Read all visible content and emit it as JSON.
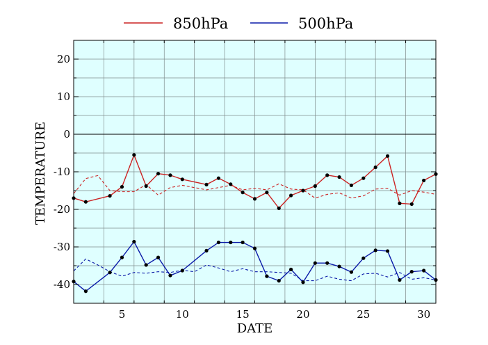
{
  "chart_data": {
    "type": "line",
    "title": "",
    "xlabel": "DATE",
    "ylabel": "TEMPERATURE",
    "xlim": [
      1,
      31
    ],
    "ylim": [
      -45,
      25
    ],
    "xticks": [
      5,
      10,
      15,
      20,
      25,
      30
    ],
    "yticks": [
      20,
      10,
      0,
      -10,
      -20,
      -30,
      -40
    ],
    "x_minor_step": 2.5,
    "y_minor_step": 5,
    "grid": true,
    "zero_line": true,
    "legend": {
      "placement": "top-center",
      "entries": [
        "850hPa",
        "500hPa"
      ]
    },
    "colors": {
      "background": "#dfffff",
      "grid": "#7f8c8c",
      "850hPa": "#cc2222",
      "500hPa": "#0a1aa8",
      "marker": "#000000"
    },
    "series": [
      {
        "name": "850hPa",
        "style": "solid-markers",
        "color": "#cc2222",
        "x": [
          1,
          2,
          4,
          5,
          6,
          7,
          8,
          9,
          10,
          12,
          13,
          14,
          15,
          16,
          17,
          18,
          19,
          20,
          21,
          22,
          23,
          24,
          25,
          26,
          27,
          28,
          29,
          30,
          31
        ],
        "values": [
          -17.0,
          -18.0,
          -16.4,
          -14.0,
          -5.5,
          -13.8,
          -10.5,
          -10.9,
          -12.0,
          -13.4,
          -11.7,
          -13.3,
          -15.5,
          -17.2,
          -15.5,
          -19.7,
          -16.3,
          -15.0,
          -13.8,
          -10.9,
          -11.4,
          -13.6,
          -11.7,
          -8.8,
          -5.8,
          -18.4,
          -18.6,
          -12.3,
          -10.6
        ]
      },
      {
        "name": "500hPa",
        "style": "solid-markers",
        "color": "#0a1aa8",
        "x": [
          1,
          2,
          4,
          5,
          6,
          7,
          8,
          9,
          10,
          12,
          13,
          14,
          15,
          16,
          17,
          18,
          19,
          20,
          21,
          22,
          23,
          24,
          25,
          26,
          27,
          28,
          29,
          30,
          31
        ],
        "values": [
          -39.2,
          -41.8,
          -36.8,
          -32.8,
          -28.6,
          -34.8,
          -32.8,
          -37.6,
          -36.3,
          -31.0,
          -28.8,
          -28.8,
          -28.8,
          -30.4,
          -37.8,
          -39.0,
          -36.0,
          -39.4,
          -34.3,
          -34.3,
          -35.2,
          -36.7,
          -33.0,
          -30.9,
          -31.1,
          -38.8,
          -36.6,
          -36.3,
          -38.8
        ]
      },
      {
        "name": "",
        "style": "dashed",
        "color": "#cc2222",
        "x": [
          1,
          2,
          3,
          4,
          5,
          6,
          7,
          8,
          9,
          10,
          11,
          12,
          13,
          14,
          15,
          16,
          17,
          18,
          19,
          20,
          21,
          22,
          23,
          24,
          25,
          26,
          27,
          28,
          29,
          30,
          31
        ],
        "values": [
          -15.8,
          -11.8,
          -11.0,
          -15.0,
          -15.3,
          -15.3,
          -13.4,
          -16.2,
          -14.2,
          -13.6,
          -14.2,
          -14.8,
          -14.2,
          -13.6,
          -14.8,
          -14.4,
          -14.8,
          -13.2,
          -14.6,
          -14.8,
          -17.0,
          -16.0,
          -15.6,
          -17.0,
          -16.4,
          -14.6,
          -14.4,
          -16.2,
          -15.0,
          -15.4,
          -16.0
        ]
      },
      {
        "name": "",
        "style": "dashed",
        "color": "#0a1aa8",
        "x": [
          1,
          2,
          3,
          4,
          5,
          6,
          7,
          8,
          9,
          10,
          11,
          12,
          13,
          14,
          15,
          16,
          17,
          18,
          19,
          20,
          21,
          22,
          23,
          24,
          25,
          26,
          27,
          28,
          29,
          30,
          31
        ],
        "values": [
          -36.4,
          -33.2,
          -34.8,
          -36.6,
          -37.8,
          -36.8,
          -37.0,
          -36.6,
          -36.8,
          -36.2,
          -36.6,
          -34.8,
          -35.6,
          -36.6,
          -35.8,
          -36.6,
          -36.6,
          -36.8,
          -37.0,
          -39.0,
          -39.0,
          -37.8,
          -38.6,
          -39.0,
          -37.2,
          -37.0,
          -38.0,
          -36.8,
          -38.6,
          -38.2,
          -38.8
        ]
      }
    ]
  }
}
